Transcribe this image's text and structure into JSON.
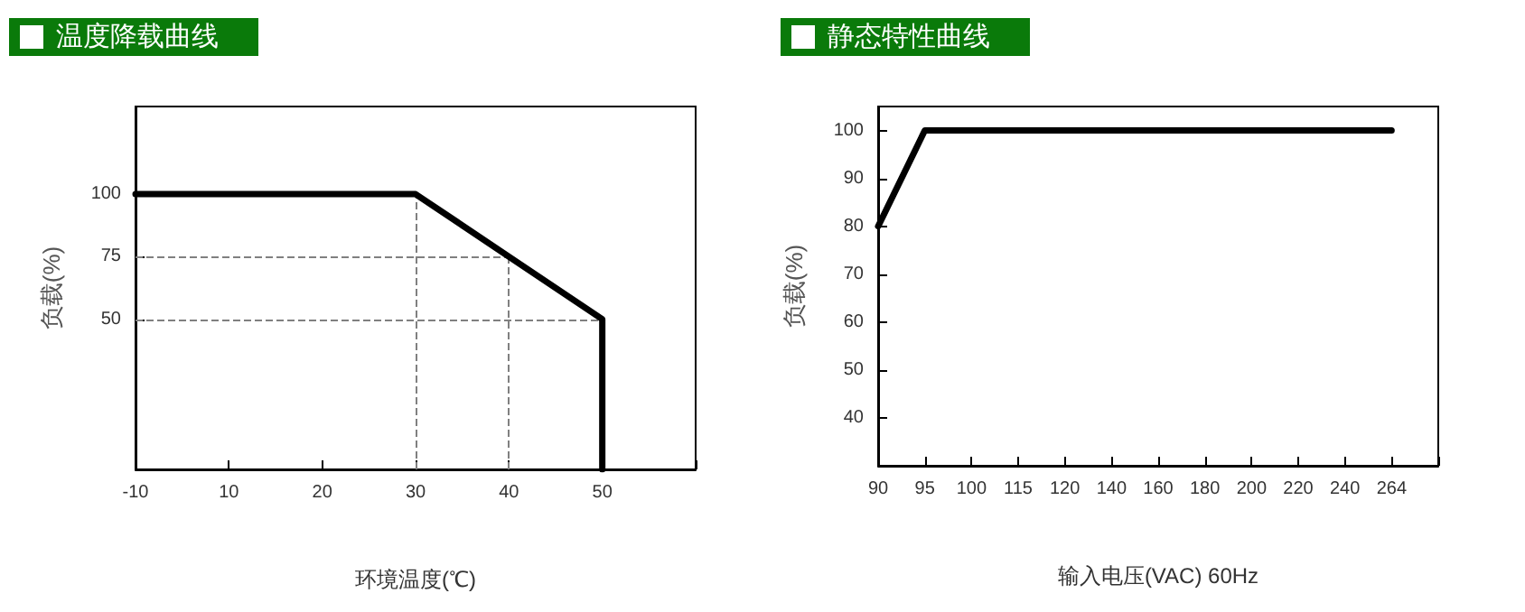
{
  "chart_data": [
    {
      "type": "line",
      "title": "温度降载曲线",
      "xlabel": "环境温度(℃)",
      "ylabel": "负载(%)",
      "categories": [
        "-10",
        "10",
        "20",
        "30",
        "40",
        "50",
        null
      ],
      "series": [
        {
          "color": "#000000",
          "x": [
            "-10",
            "30",
            "40",
            "50",
            "50"
          ],
          "values": [
            100,
            100,
            75,
            50,
            -10
          ]
        }
      ],
      "ylim": [
        -10,
        135
      ],
      "yticks": [
        50,
        75,
        100
      ],
      "grid": false,
      "marker": "none",
      "line_style": "solid",
      "ref_lines": [
        {
          "axis": "y",
          "value": 75,
          "color": "#808080",
          "line_style": "dashed"
        },
        {
          "axis": "y",
          "value": 50,
          "color": "#808080",
          "line_style": "dashed"
        },
        {
          "axis": "x",
          "value": "30",
          "color": "#808080",
          "line_style": "dashed"
        },
        {
          "axis": "x",
          "value": "40",
          "color": "#808080",
          "line_style": "dashed"
        }
      ]
    },
    {
      "type": "line",
      "title": "静态特性曲线",
      "xlabel": "输入电压(VAC) 60Hz",
      "ylabel": "负载(%)",
      "categories": [
        "90",
        "95",
        "100",
        "115",
        "120",
        "140",
        "160",
        "180",
        "200",
        "220",
        "240",
        "264",
        null
      ],
      "series": [
        {
          "color": "#000000",
          "values": [
            80,
            100,
            100,
            100,
            100,
            100,
            100,
            100,
            100,
            100,
            100,
            100,
            null
          ]
        }
      ],
      "ylim": [
        30,
        105
      ],
      "yticks": [
        40,
        50,
        60,
        70,
        80,
        90,
        100
      ],
      "grid": false,
      "marker": "none",
      "line_style": "solid"
    }
  ]
}
